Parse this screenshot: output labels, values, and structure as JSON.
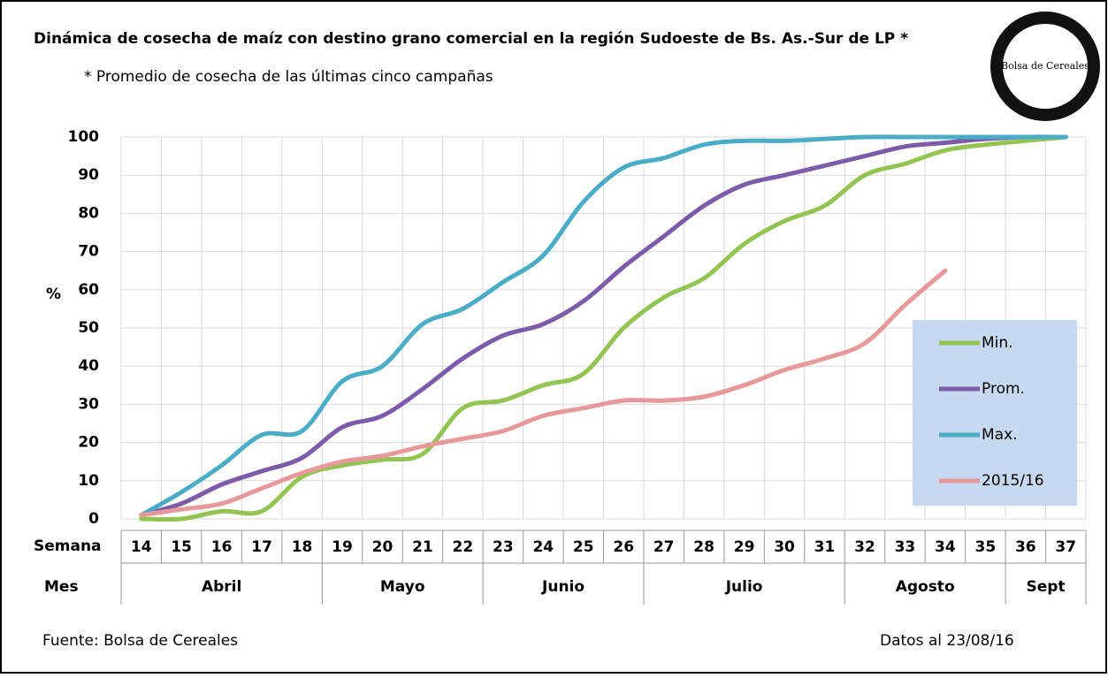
{
  "chart_data": {
    "type": "line",
    "title": "Dinámica de cosecha de maíz con destino grano comercial en la región Sudoeste de Bs. As.-Sur de LP *",
    "subtitle": "* Promedio de cosecha de las últimas cinco campañas",
    "logo": "Bolsa de Cereales",
    "y_label": "%",
    "x_label": "Semana",
    "month_label": "Mes",
    "source": "Fuente: Bolsa de Cereales",
    "date_note": "Datos al  23/08/16",
    "categories": [
      "14",
      "15",
      "16",
      "17",
      "18",
      "19",
      "20",
      "21",
      "22",
      "23",
      "24",
      "25",
      "26",
      "27",
      "28",
      "29",
      "30",
      "31",
      "32",
      "33",
      "34",
      "35",
      "36",
      "37"
    ],
    "months": [
      "Abril",
      null,
      null,
      null,
      null,
      "Mayo",
      null,
      null,
      null,
      "Junio",
      null,
      null,
      null,
      "Julio",
      null,
      null,
      null,
      null,
      "Agosto",
      null,
      null,
      null,
      "Sept",
      null
    ],
    "series": [
      {
        "name": "Min.",
        "color": "#92c353",
        "values": [
          0,
          0,
          2,
          2,
          11,
          14,
          15.5,
          17,
          29,
          31,
          35,
          38,
          50,
          58,
          63,
          72,
          78,
          82,
          90,
          93,
          96.5,
          98,
          99,
          100
        ]
      },
      {
        "name": "Prom.",
        "color": "#7c5ba8",
        "values": [
          1,
          4,
          9,
          12.5,
          16,
          24,
          27,
          34,
          42,
          48,
          51,
          57,
          66,
          74,
          82,
          87.5,
          90,
          92.5,
          95,
          97.5,
          98.5,
          99.5,
          100,
          100
        ]
      },
      {
        "name": "Max.",
        "color": "#4bacc6",
        "values": [
          1,
          7,
          14,
          22,
          23,
          36,
          40,
          51,
          55,
          62,
          69,
          83,
          92,
          94.5,
          98,
          99,
          99,
          99.5,
          100,
          100,
          100,
          100,
          100,
          100
        ]
      },
      {
        "name": "2015/16",
        "color": "#e6989a",
        "values": [
          1,
          2.5,
          4,
          8,
          12,
          15,
          16.5,
          19,
          21,
          23,
          27,
          29,
          31,
          31,
          32,
          35,
          39,
          42,
          46,
          56,
          65,
          null,
          null,
          null
        ]
      }
    ],
    "ylim": [
      0,
      100
    ],
    "yticks": [
      0,
      10,
      20,
      30,
      40,
      50,
      60,
      70,
      80,
      90,
      100
    ],
    "grid": true,
    "legend_position": "right",
    "legend_background": "#c6d9f0"
  }
}
